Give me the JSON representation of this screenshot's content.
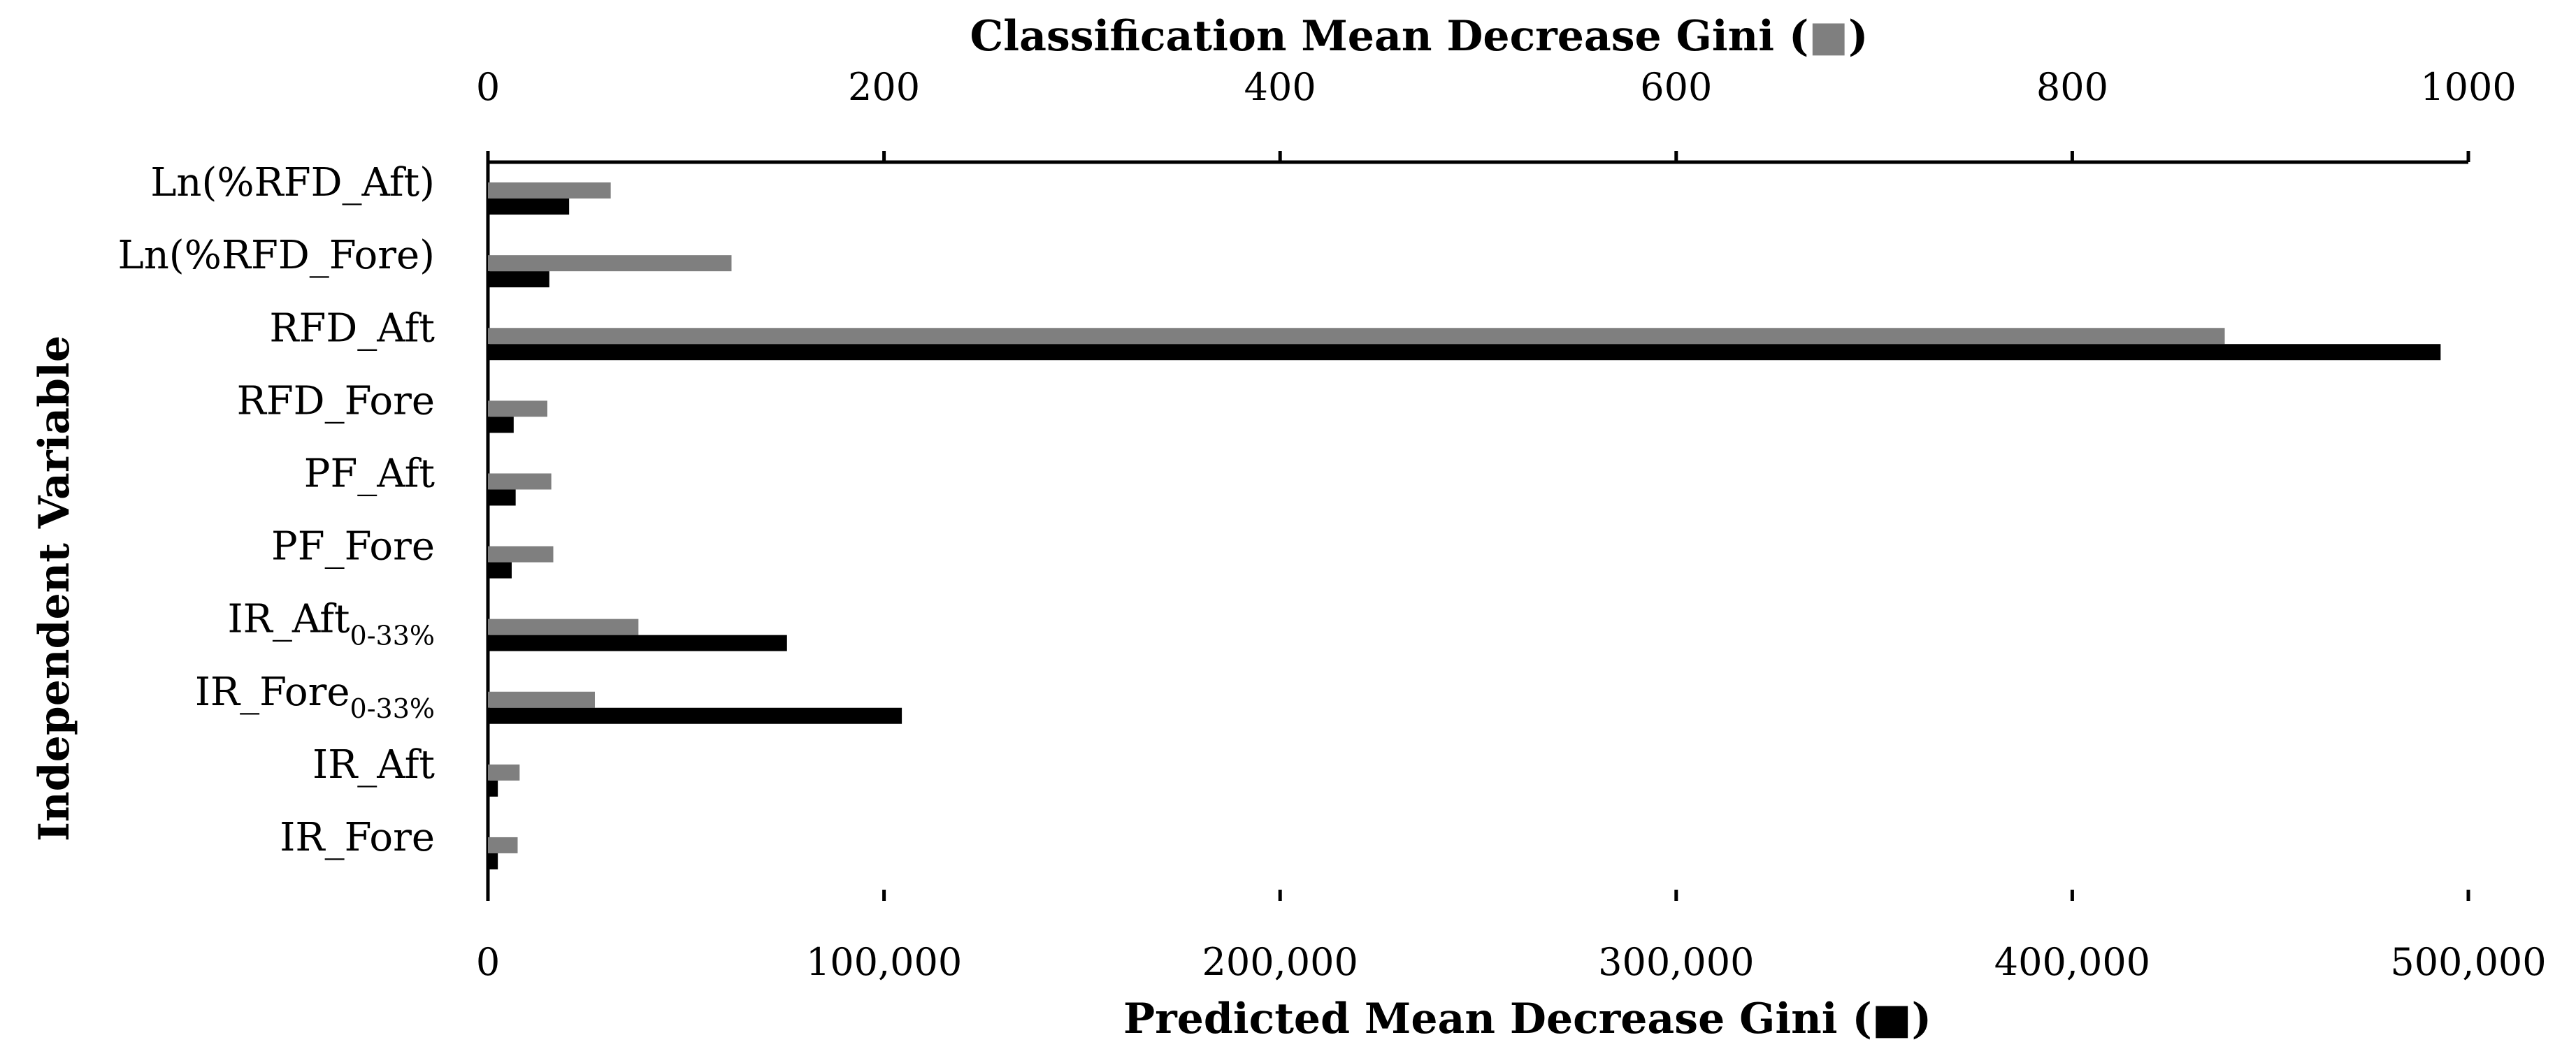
{
  "chart_data": {
    "type": "bar",
    "orientation": "horizontal",
    "categories": [
      {
        "main": "Ln(%RFD_Aft)",
        "sub": ""
      },
      {
        "main": "Ln(%RFD_Fore)",
        "sub": ""
      },
      {
        "main": "RFD_Aft",
        "sub": ""
      },
      {
        "main": "RFD_Fore",
        "sub": ""
      },
      {
        "main": "PF_Aft",
        "sub": ""
      },
      {
        "main": "PF_Fore",
        "sub": ""
      },
      {
        "main": "IR_Aft",
        "sub": "0-33%"
      },
      {
        "main": "IR_Fore",
        "sub": "0-33%"
      },
      {
        "main": "IR_Aft",
        "sub": ""
      },
      {
        "main": "IR_Fore",
        "sub": ""
      }
    ],
    "ylabel": "Independent Variable",
    "series": [
      {
        "name": "Classification Mean Decrease Gini",
        "axis": "top",
        "color": "#7f7f7f",
        "values": [
          62,
          123,
          877,
          30,
          32,
          33,
          76,
          54,
          16,
          15
        ]
      },
      {
        "name": "Predicted Mean Decrease Gini",
        "axis": "bottom",
        "color": "#000000",
        "values": [
          20500,
          15500,
          493000,
          6500,
          7000,
          6000,
          75500,
          104500,
          2500,
          2500
        ]
      }
    ],
    "top_axis": {
      "title": "Classification Mean Decrease Gini (",
      "legend_marker": "■",
      "title_end": ")",
      "range": [
        0,
        1000
      ],
      "ticks": [
        0,
        200,
        400,
        600,
        800,
        1000
      ],
      "tick_labels": [
        "0",
        "200",
        "400",
        "600",
        "800",
        "1000"
      ]
    },
    "bottom_axis": {
      "title": "Predicted Mean Decrease Gini (",
      "legend_marker": "■",
      "title_end": ")",
      "range": [
        0,
        500000
      ],
      "ticks": [
        0,
        100000,
        200000,
        300000,
        400000,
        500000
      ],
      "tick_labels": [
        "0",
        "100,000",
        "200,000",
        "300,000",
        "400,000",
        "500,000"
      ]
    }
  }
}
